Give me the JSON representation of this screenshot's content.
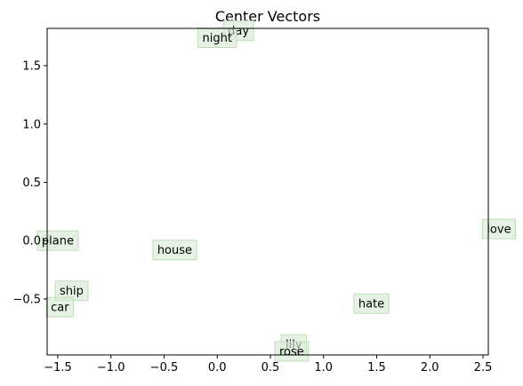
{
  "chart_data": {
    "type": "scatter",
    "title": "Center Vectors",
    "xlabel": "",
    "ylabel": "",
    "xlim": [
      -1.6,
      2.55
    ],
    "ylim": [
      -0.98,
      1.82
    ],
    "xticks": [
      -1.5,
      -1.0,
      -0.5,
      0.0,
      0.5,
      1.0,
      1.5,
      2.0,
      2.5
    ],
    "xtick_labels": [
      "−1.5",
      "−1.0",
      "−0.5",
      "0.0",
      "0.5",
      "1.0",
      "1.5",
      "2.0",
      "2.5"
    ],
    "yticks": [
      -0.5,
      0.0,
      0.5,
      1.0,
      1.5
    ],
    "ytick_labels": [
      "−0.5",
      "0.0",
      "0.5",
      "1.0",
      "1.5"
    ],
    "grid": false,
    "points": [
      {
        "label": "day",
        "x": 0.2,
        "y": 1.8
      },
      {
        "label": "night",
        "x": 0.0,
        "y": 1.74
      },
      {
        "label": "love",
        "x": 2.65,
        "y": 0.1
      },
      {
        "label": "plane",
        "x": -1.5,
        "y": 0.0
      },
      {
        "label": "house",
        "x": -0.4,
        "y": -0.08
      },
      {
        "label": "ship",
        "x": -1.37,
        "y": -0.43
      },
      {
        "label": "car",
        "x": -1.48,
        "y": -0.57
      },
      {
        "label": "hate",
        "x": 1.45,
        "y": -0.54
      },
      {
        "label": "lily",
        "x": 0.72,
        "y": -0.89
      },
      {
        "label": "rose",
        "x": 0.7,
        "y": -0.95
      }
    ]
  }
}
